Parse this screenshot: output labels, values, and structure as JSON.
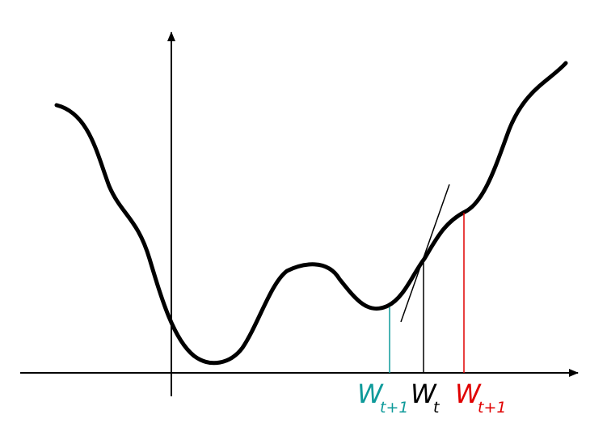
{
  "labels": [
    {
      "main": "W",
      "sub": "t+1"
    },
    {
      "main": "W",
      "sub": "t"
    },
    {
      "main": "W",
      "sub": "t+1"
    }
  ]
}
